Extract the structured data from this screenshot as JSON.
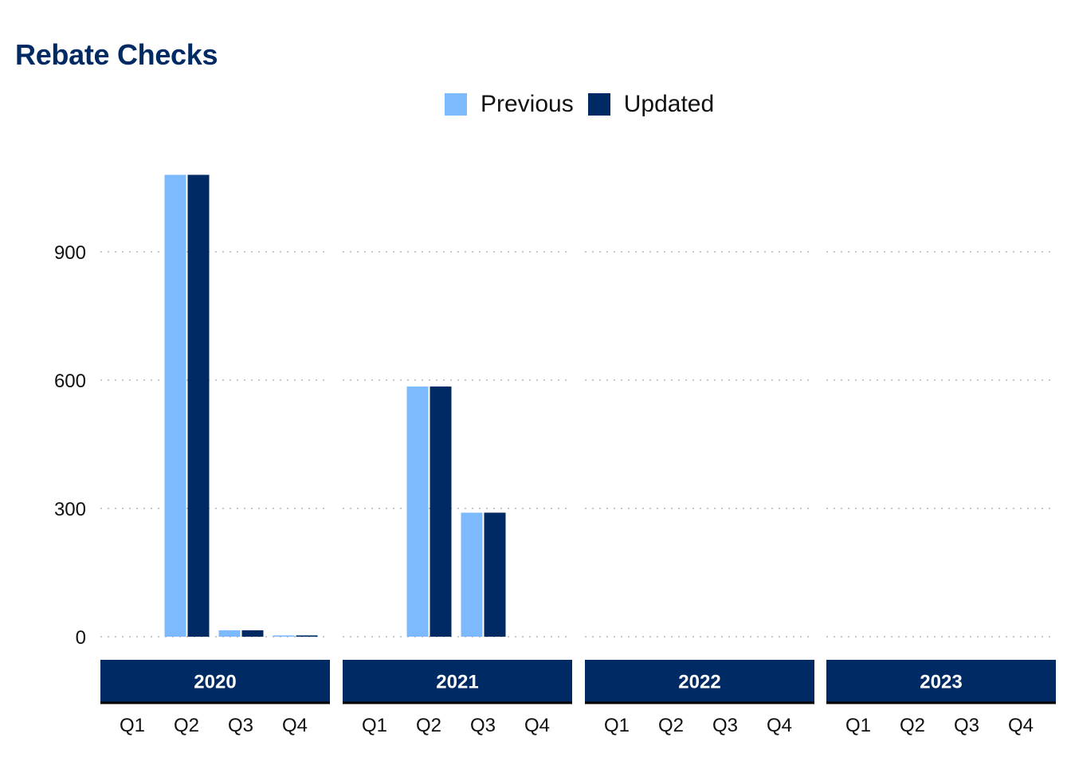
{
  "title": "Rebate Checks",
  "legend": [
    {
      "label": "Previous",
      "color": "#7cb9fd"
    },
    {
      "label": "Updated",
      "color": "#002a64"
    }
  ],
  "chart_data": {
    "type": "bar",
    "title": "Rebate Checks",
    "facets": [
      "2020",
      "2021",
      "2022",
      "2023"
    ],
    "categories": [
      "Q1",
      "Q2",
      "Q3",
      "Q4"
    ],
    "series": [
      {
        "name": "Previous",
        "color": "#7cb9fd",
        "values": [
          [
            0,
            1080,
            15,
            3
          ],
          [
            0,
            585,
            290,
            0
          ],
          [
            0,
            0,
            0,
            0
          ],
          [
            0,
            0,
            0,
            0
          ]
        ]
      },
      {
        "name": "Updated",
        "color": "#002a64",
        "values": [
          [
            0,
            1080,
            15,
            3
          ],
          [
            0,
            585,
            290,
            0
          ],
          [
            0,
            0,
            0,
            0
          ],
          [
            0,
            0,
            0,
            0
          ]
        ]
      }
    ],
    "yticks": [
      0,
      300,
      600,
      900
    ],
    "ylim": [
      0,
      1150
    ],
    "xlabel": "",
    "ylabel": "",
    "grid": "horizontal dotted",
    "legend_position": "top"
  }
}
